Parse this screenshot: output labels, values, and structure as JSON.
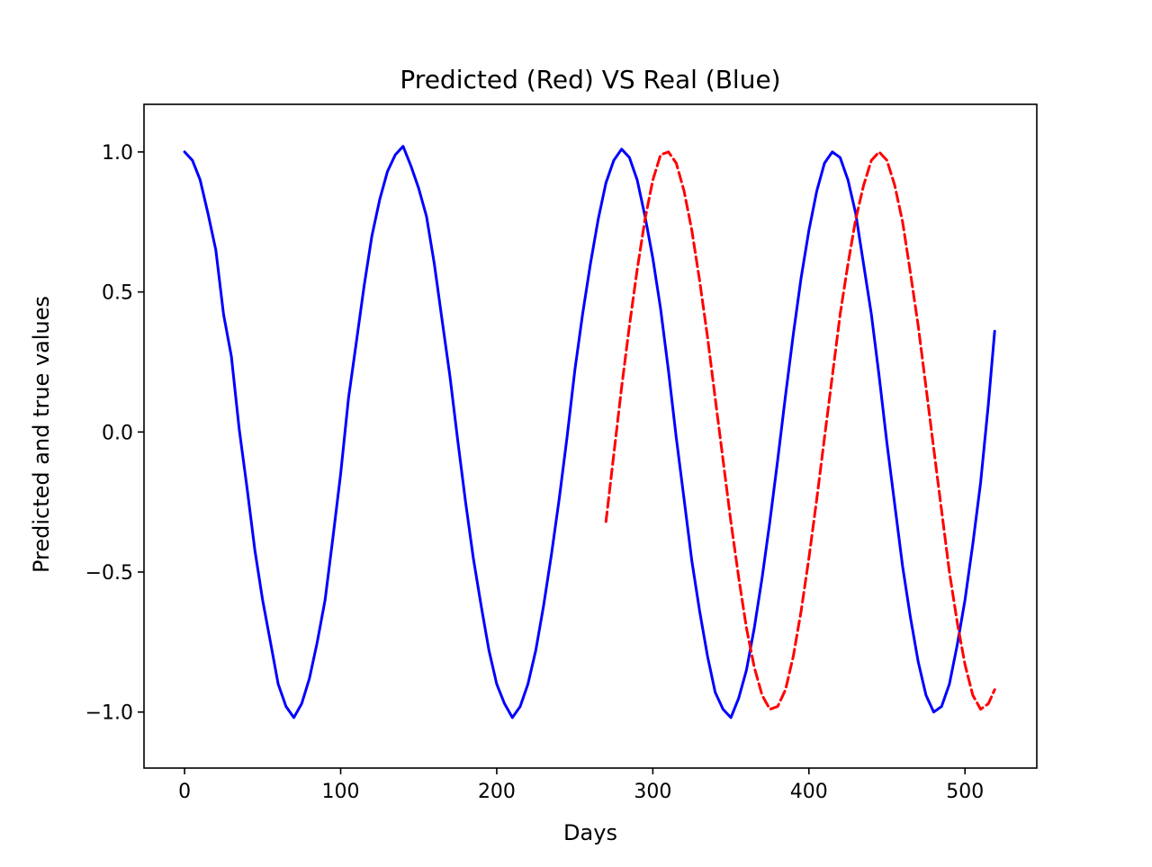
{
  "chart_data": {
    "type": "line",
    "title": "Predicted (Red) VS Real (Blue)",
    "xlabel": "Days",
    "ylabel": "Predicted and true values",
    "xlim": [
      -26,
      546
    ],
    "ylim": [
      -1.2,
      1.17
    ],
    "grid": false,
    "x_ticks": [
      {
        "value": 0,
        "label": "0"
      },
      {
        "value": 100,
        "label": "100"
      },
      {
        "value": 200,
        "label": "200"
      },
      {
        "value": 300,
        "label": "300"
      },
      {
        "value": 400,
        "label": "400"
      },
      {
        "value": 500,
        "label": "500"
      }
    ],
    "y_ticks": [
      {
        "value": -1.0,
        "label": "−1.0"
      },
      {
        "value": -0.5,
        "label": "−0.5"
      },
      {
        "value": 0.0,
        "label": "0.0"
      },
      {
        "value": 0.5,
        "label": "0.5"
      },
      {
        "value": 1.0,
        "label": "1.0"
      }
    ],
    "series": [
      {
        "color": "#0000ff",
        "style": "solid",
        "x": [
          0,
          5,
          10,
          15,
          20,
          25,
          30,
          35,
          40,
          45,
          50,
          55,
          60,
          65,
          70,
          75,
          80,
          85,
          90,
          95,
          100,
          105,
          110,
          115,
          120,
          125,
          130,
          135,
          140,
          145,
          150,
          155,
          160,
          165,
          170,
          175,
          180,
          185,
          190,
          195,
          200,
          205,
          210,
          215,
          220,
          225,
          230,
          235,
          240,
          245,
          250,
          255,
          260,
          265,
          270,
          275,
          280,
          285,
          290,
          295,
          300,
          305,
          310,
          315,
          320,
          325,
          330,
          335,
          340,
          345,
          350,
          355,
          360,
          365,
          370,
          375,
          380,
          385,
          390,
          395,
          400,
          405,
          410,
          415,
          420,
          425,
          430,
          435,
          440,
          445,
          450,
          455,
          460,
          465,
          470,
          475,
          480,
          485,
          490,
          495,
          500,
          505,
          510,
          515,
          519
        ],
        "y": [
          1.0,
          0.97,
          0.9,
          0.78,
          0.65,
          0.42,
          0.27,
          0.01,
          -0.2,
          -0.42,
          -0.6,
          -0.75,
          -0.9,
          -0.98,
          -1.02,
          -0.97,
          -0.88,
          -0.75,
          -0.6,
          -0.38,
          -0.15,
          0.12,
          0.32,
          0.52,
          0.7,
          0.83,
          0.93,
          0.99,
          1.02,
          0.95,
          0.87,
          0.77,
          0.6,
          0.4,
          0.2,
          -0.03,
          -0.25,
          -0.45,
          -0.62,
          -0.78,
          -0.9,
          -0.97,
          -1.02,
          -0.98,
          -0.9,
          -0.78,
          -0.62,
          -0.44,
          -0.24,
          -0.02,
          0.22,
          0.42,
          0.6,
          0.76,
          0.89,
          0.97,
          1.01,
          0.98,
          0.9,
          0.77,
          0.62,
          0.44,
          0.22,
          -0.02,
          -0.24,
          -0.46,
          -0.64,
          -0.8,
          -0.93,
          -0.99,
          -1.02,
          -0.95,
          -0.85,
          -0.7,
          -0.52,
          -0.32,
          -0.1,
          0.13,
          0.35,
          0.55,
          0.72,
          0.86,
          0.96,
          1.0,
          0.98,
          0.9,
          0.78,
          0.6,
          0.42,
          0.2,
          -0.04,
          -0.26,
          -0.48,
          -0.66,
          -0.82,
          -0.94,
          -1.0,
          -0.98,
          -0.9,
          -0.76,
          -0.6,
          -0.4,
          -0.18,
          0.1,
          0.36
        ]
      },
      {
        "color": "#ff0000",
        "style": "dashed",
        "x": [
          270,
          275,
          280,
          285,
          290,
          295,
          300,
          305,
          310,
          315,
          320,
          325,
          330,
          335,
          340,
          345,
          350,
          355,
          360,
          365,
          370,
          375,
          380,
          385,
          390,
          395,
          400,
          405,
          410,
          415,
          420,
          425,
          430,
          435,
          440,
          445,
          450,
          455,
          460,
          465,
          470,
          475,
          480,
          485,
          490,
          495,
          500,
          505,
          510,
          515,
          519
        ],
        "y": [
          -0.32,
          -0.08,
          0.16,
          0.38,
          0.58,
          0.76,
          0.9,
          0.99,
          1.0,
          0.96,
          0.86,
          0.72,
          0.54,
          0.34,
          0.12,
          -0.1,
          -0.32,
          -0.52,
          -0.7,
          -0.84,
          -0.94,
          -0.99,
          -0.98,
          -0.92,
          -0.8,
          -0.64,
          -0.45,
          -0.24,
          -0.02,
          0.2,
          0.42,
          0.6,
          0.76,
          0.88,
          0.97,
          1.0,
          0.97,
          0.88,
          0.75,
          0.57,
          0.38,
          0.16,
          -0.06,
          -0.28,
          -0.5,
          -0.68,
          -0.83,
          -0.94,
          -0.99,
          -0.97,
          -0.92
        ]
      }
    ]
  }
}
